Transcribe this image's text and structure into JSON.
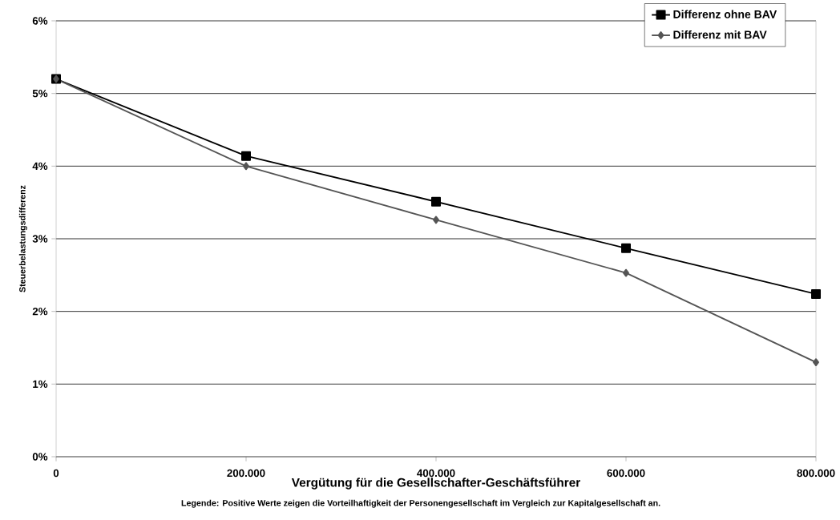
{
  "chart_data": {
    "type": "line",
    "xlabel": "Vergütung für die Gesellschafter-Geschäftsführer",
    "ylabel": "Steuerbelastungsdifferenz",
    "annotations": [
      "Legende: Positive Werte zeigen die Vorteilhaftigkeit der Personengesellschaft im Vergleich zur Kapitalgesellschaft an."
    ],
    "x": [
      0,
      200000,
      400000,
      600000,
      800000
    ],
    "series": [
      {
        "name": "Differenz ohne BAV",
        "color": "#000000",
        "marker": "square",
        "values": [
          5.2,
          4.14,
          3.51,
          2.87,
          2.24
        ]
      },
      {
        "name": "Differenz mit BAV",
        "color": "#555555",
        "marker": "diamond",
        "values": [
          5.2,
          4.0,
          3.26,
          2.53,
          1.3
        ]
      }
    ],
    "xlim": [
      0,
      800000
    ],
    "xticks": [
      {
        "value": 0,
        "label": "0"
      },
      {
        "value": 200000,
        "label": "200.000"
      },
      {
        "value": 400000,
        "label": "400.000"
      },
      {
        "value": 600000,
        "label": "600.000"
      },
      {
        "value": 800000,
        "label": "800.000"
      }
    ],
    "ylim": [
      0,
      6
    ],
    "yticks": [
      {
        "value": 0,
        "label": "0%"
      },
      {
        "value": 1,
        "label": "1%"
      },
      {
        "value": 2,
        "label": "2%"
      },
      {
        "value": 3,
        "label": "3%"
      },
      {
        "value": 4,
        "label": "4%"
      },
      {
        "value": 5,
        "label": "5%"
      },
      {
        "value": 6,
        "label": "6%"
      }
    ],
    "grid": "y",
    "legend": "top right",
    "line_style": "solid"
  }
}
